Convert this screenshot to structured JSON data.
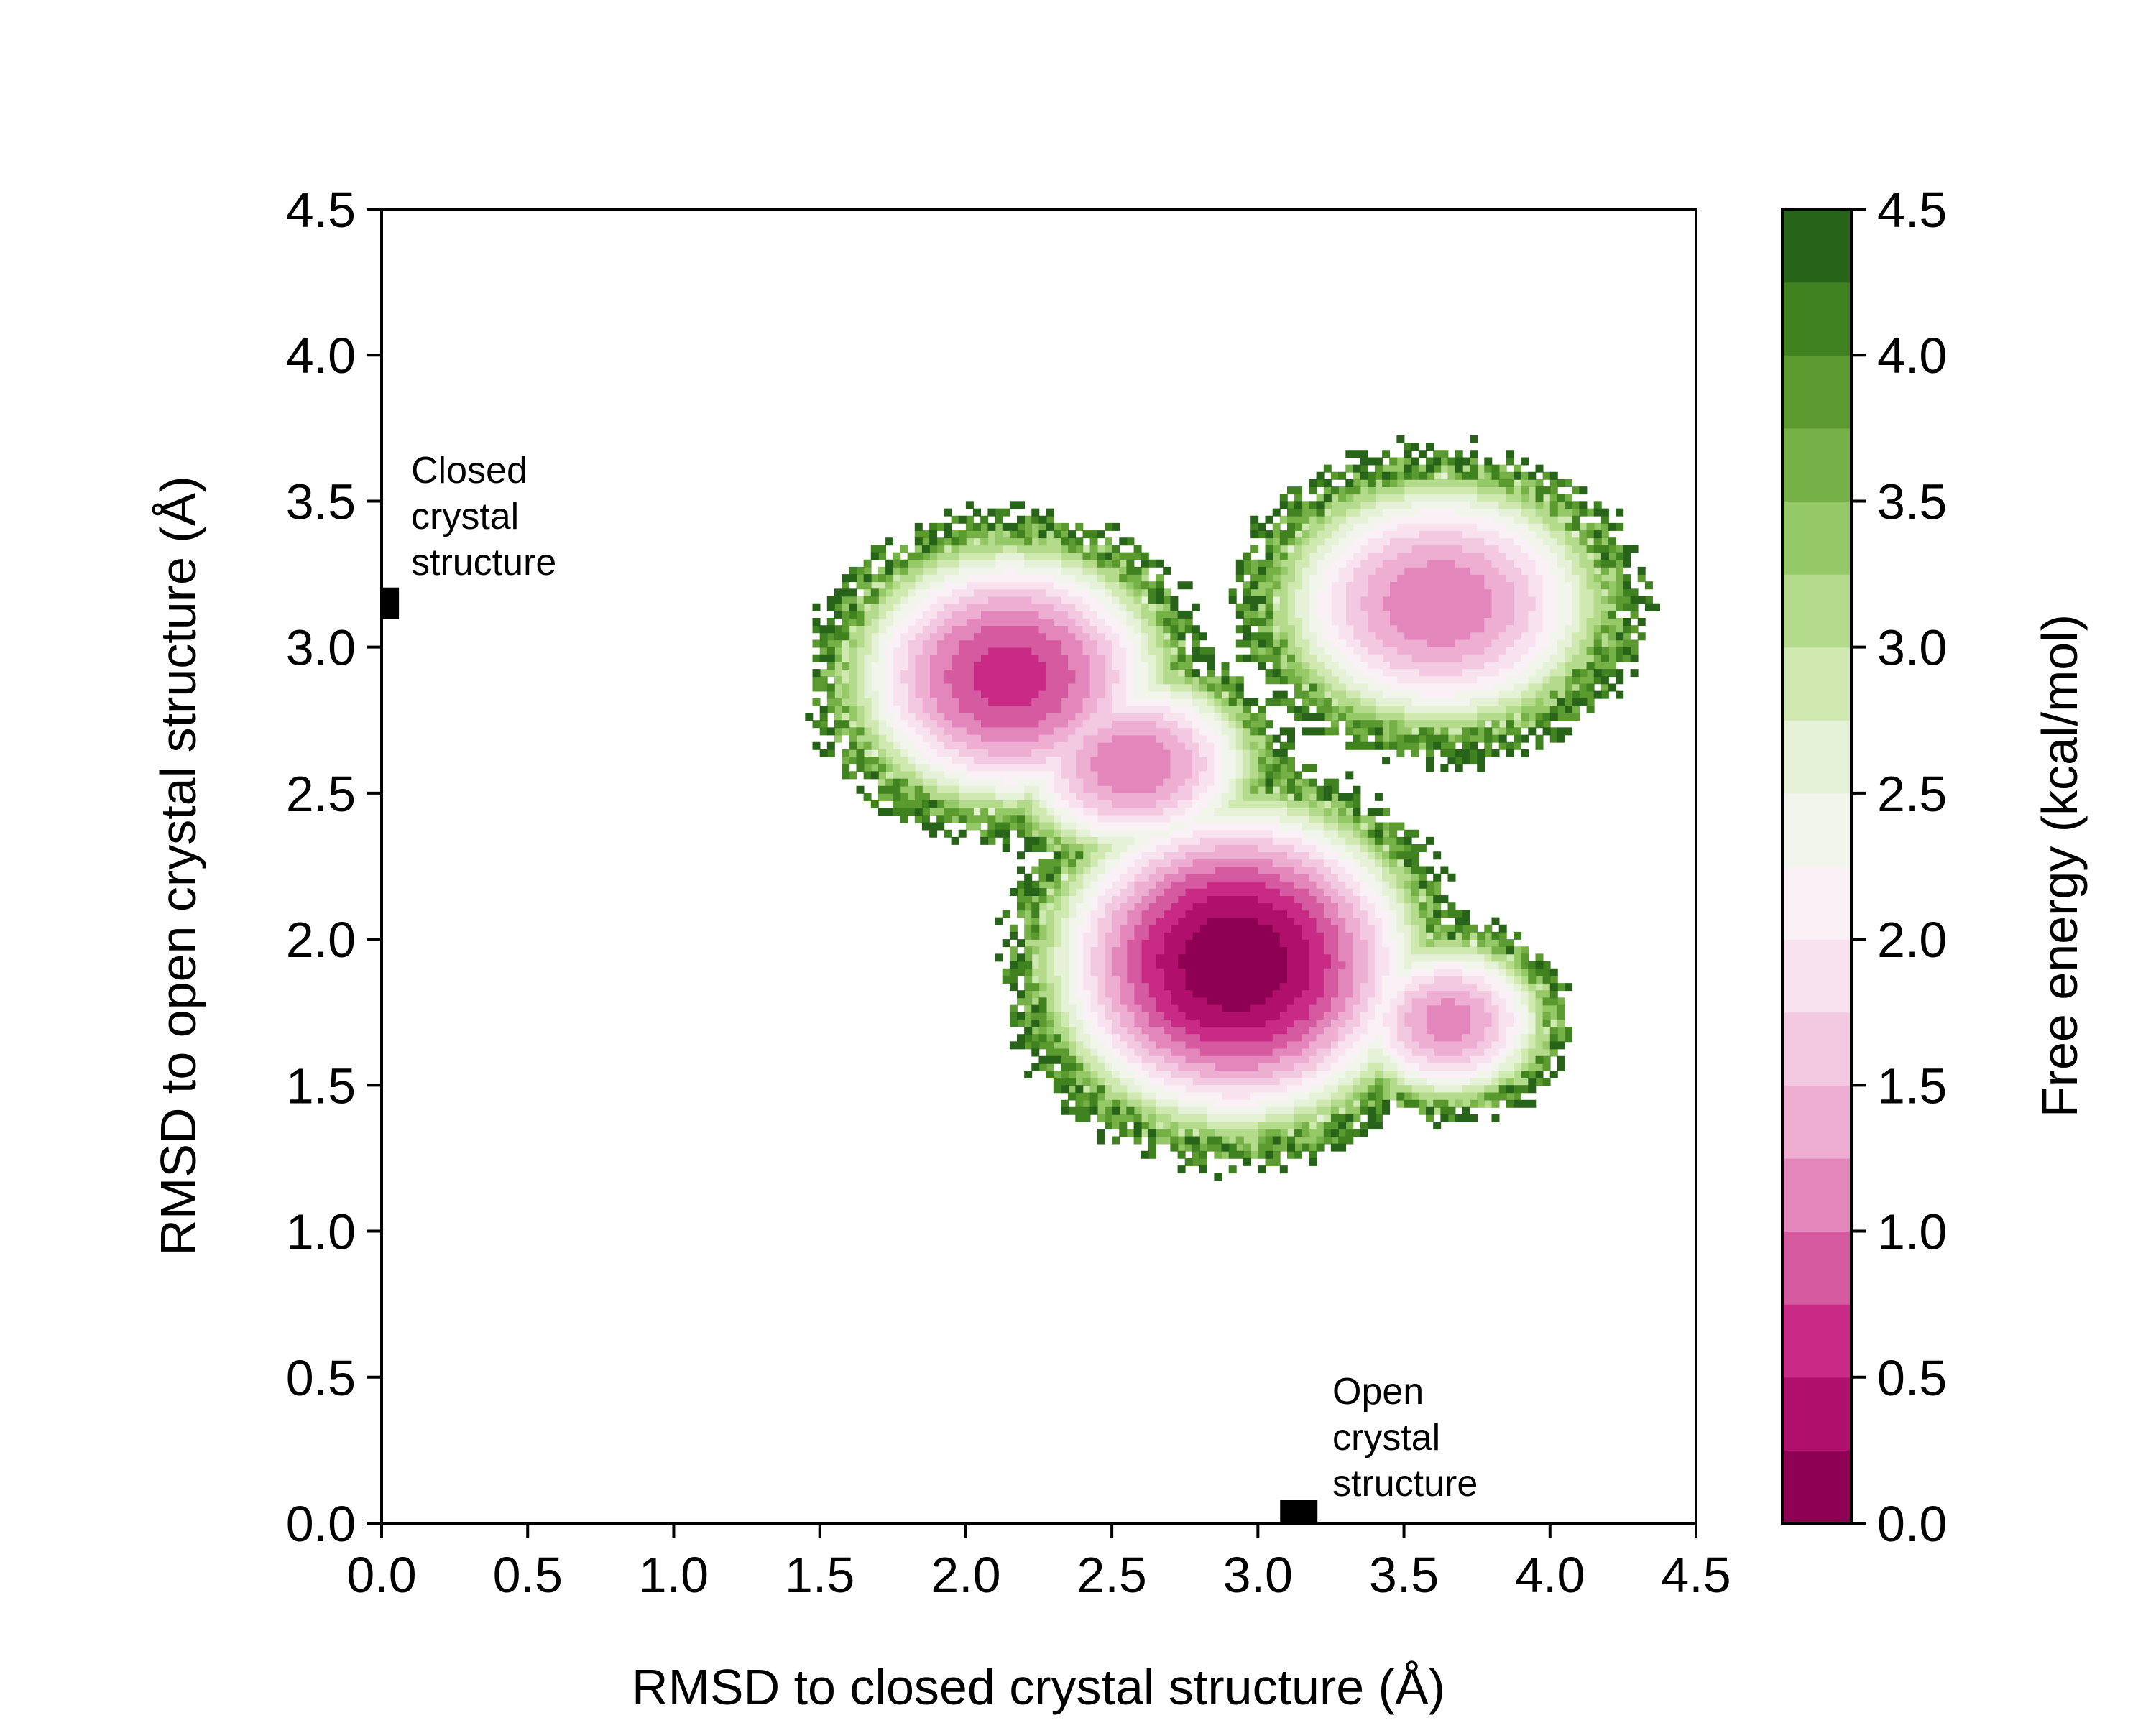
{
  "chart_data": {
    "type": "heatmap",
    "subtype": "filled-contour free energy landscape",
    "title": "",
    "xlabel": "RMSD to closed crystal structure (Å)",
    "ylabel": "RMSD to open crystal structure (Å)",
    "xlim": [
      0.0,
      4.5
    ],
    "ylim": [
      0.0,
      4.5
    ],
    "x_ticks": [
      "0.0",
      "0.5",
      "1.0",
      "1.5",
      "2.0",
      "2.5",
      "3.0",
      "3.5",
      "4.0",
      "4.5"
    ],
    "y_ticks": [
      "0.0",
      "0.5",
      "1.0",
      "1.5",
      "2.0",
      "2.5",
      "3.0",
      "3.5",
      "4.0",
      "4.5"
    ],
    "colorbar": {
      "label": "Free energy (kcal/mol)",
      "range": [
        0.0,
        4.5
      ],
      "ticks": [
        "0.0",
        "0.5",
        "1.0",
        "1.5",
        "2.0",
        "2.5",
        "3.0",
        "3.5",
        "4.0",
        "4.5"
      ],
      "levels": [
        0.0,
        0.25,
        0.5,
        0.75,
        1.0,
        1.25,
        1.5,
        1.75,
        2.0,
        2.25,
        2.5,
        2.75,
        3.0,
        3.25,
        3.5,
        3.75,
        4.0,
        4.25,
        4.5
      ],
      "colors": [
        "#8e0152",
        "#b0106c",
        "#c92a86",
        "#d65a9f",
        "#e286bb",
        "#edaed2",
        "#f3c8e1",
        "#f9e2ef",
        "#faf1f6",
        "#f2f5ec",
        "#e5f2d7",
        "#cfe9b0",
        "#b3db8b",
        "#95c867",
        "#76b147",
        "#5a9a2f",
        "#3f821f",
        "#276419"
      ]
    },
    "basins": [
      {
        "x": 2.92,
        "y": 1.92,
        "depth": 0.0,
        "sx": 0.26,
        "sy": 0.23
      },
      {
        "x": 2.15,
        "y": 2.9,
        "depth": 0.6,
        "sx": 0.24,
        "sy": 0.2
      },
      {
        "x": 2.57,
        "y": 2.6,
        "depth": 1.0,
        "sx": 0.2,
        "sy": 0.15
      },
      {
        "x": 3.62,
        "y": 3.15,
        "depth": 1.0,
        "sx": 0.26,
        "sy": 0.2
      },
      {
        "x": 3.65,
        "y": 1.72,
        "depth": 1.1,
        "sx": 0.16,
        "sy": 0.13
      }
    ],
    "sampled_region_max_free_energy": 4.5,
    "annotations": [
      {
        "text_lines": [
          "Closed",
          "crystal",
          "structure"
        ],
        "marker_x": 0.02,
        "marker_y": 3.15
      },
      {
        "text_lines": [
          "Open",
          "crystal",
          "structure"
        ],
        "marker_x": 3.14,
        "marker_y": 0.02
      }
    ]
  }
}
